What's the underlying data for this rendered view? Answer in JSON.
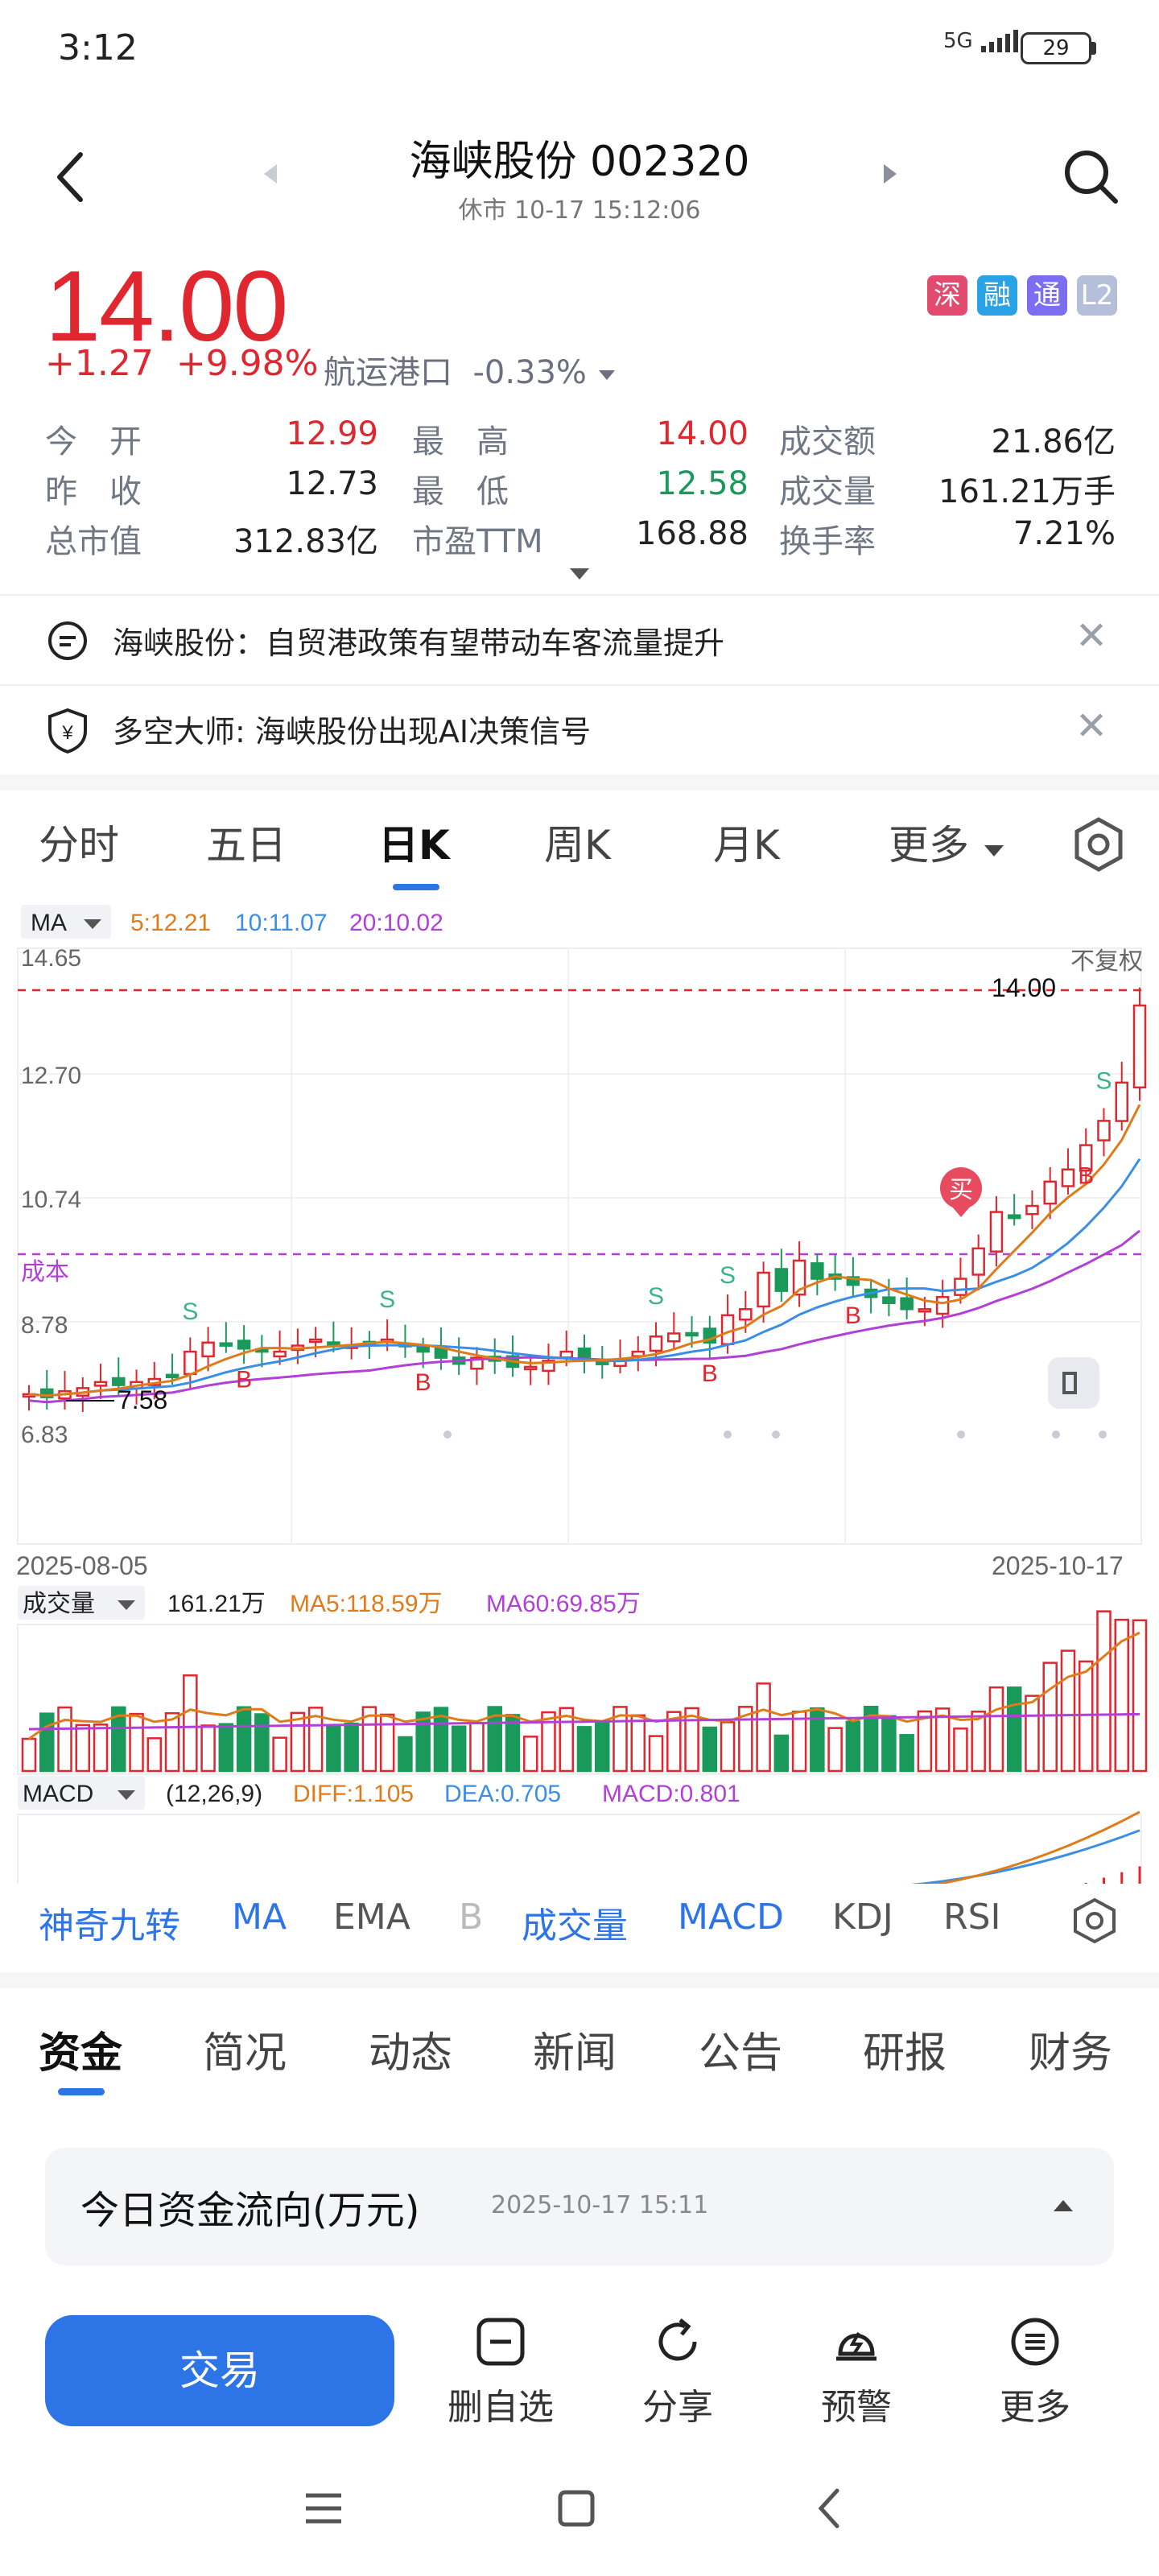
{
  "status_bar": {
    "time": "3:12",
    "network": "5G",
    "battery": "29"
  },
  "header": {
    "title": "海峡股份 002320",
    "subtitle": "休市 10-17 15:12:06"
  },
  "quote": {
    "price": "14.00",
    "change": "+1.27",
    "change_pct": "+9.98%",
    "industry": "航运港口",
    "industry_pct": "-0.33%",
    "badges": [
      "深",
      "融",
      "通",
      "L2"
    ]
  },
  "stats": [
    {
      "label": "今　开",
      "value": "12.99",
      "color": "red"
    },
    {
      "label": "最　高",
      "value": "14.00",
      "color": "red"
    },
    {
      "label": "成交额",
      "value": "21.86亿",
      "color": "black"
    },
    {
      "label": "昨　收",
      "value": "12.73",
      "color": "black"
    },
    {
      "label": "最　低",
      "value": "12.58",
      "color": "green"
    },
    {
      "label": "成交量",
      "value": "161.21万手",
      "color": "black"
    },
    {
      "label": "总市值",
      "value": "312.83亿",
      "color": "black"
    },
    {
      "label": "市盈TTM",
      "value": "168.88",
      "color": "black"
    },
    {
      "label": "换手率",
      "value": "7.21%",
      "color": "black"
    }
  ],
  "news": [
    {
      "icon": "chat-icon",
      "text": "海峡股份：自贸港政策有望带动车客流量提升"
    },
    {
      "icon": "shield-yen-icon",
      "text": "多空大师: 海峡股份出现AI决策信号"
    }
  ],
  "chart_tabs": [
    "分时",
    "五日",
    "日K",
    "周K",
    "月K",
    "更多"
  ],
  "chart_data": {
    "type": "candlestick",
    "ma_label": "MA",
    "ma_values": {
      "ma5": "5:12.21",
      "ma10": "10:11.07",
      "ma20": "20:10.02"
    },
    "y_ticks": [
      "14.65",
      "12.70",
      "10.74",
      "8.78",
      "6.83"
    ],
    "adjust": "不复权",
    "last_price_label": "14.00",
    "low_label": "7.58",
    "cost_label": "成本",
    "buy_marker": "买",
    "signals": {
      "sell": "S",
      "buy": "B"
    },
    "x_start": "2025-08-05",
    "x_end": "2025-10-17",
    "colors": {
      "up": "#e0262f",
      "down": "#1a9a5a",
      "ma5": "#e07b1a",
      "ma10": "#3a8ee6",
      "ma20": "#b23fd6"
    },
    "volume": {
      "label": "成交量",
      "value": "161.21万",
      "ma5": "MA5:118.59万",
      "ma60": "MA60:69.85万"
    },
    "macd": {
      "label": "MACD",
      "params": "(12,26,9)",
      "diff": "DIFF:1.105",
      "dea": "DEA:0.705",
      "macd": "MACD:0.801"
    }
  },
  "indicator_tabs": [
    "神奇九转",
    "MA",
    "EMA",
    "B",
    "成交量",
    "MACD",
    "KDJ",
    "RSI"
  ],
  "section_tabs": [
    "资金",
    "简况",
    "动态",
    "新闻",
    "公告",
    "研报",
    "财务"
  ],
  "fund_flow": {
    "title": "今日资金流向(万元)",
    "time": "2025-10-17 15:11"
  },
  "bottom_bar": {
    "trade": "交易",
    "items": [
      {
        "label": "删自选",
        "icon": "minus-square-icon"
      },
      {
        "label": "分享",
        "icon": "share-icon"
      },
      {
        "label": "预警",
        "icon": "alert-bolt-icon"
      },
      {
        "label": "更多",
        "icon": "more-icon"
      }
    ]
  }
}
